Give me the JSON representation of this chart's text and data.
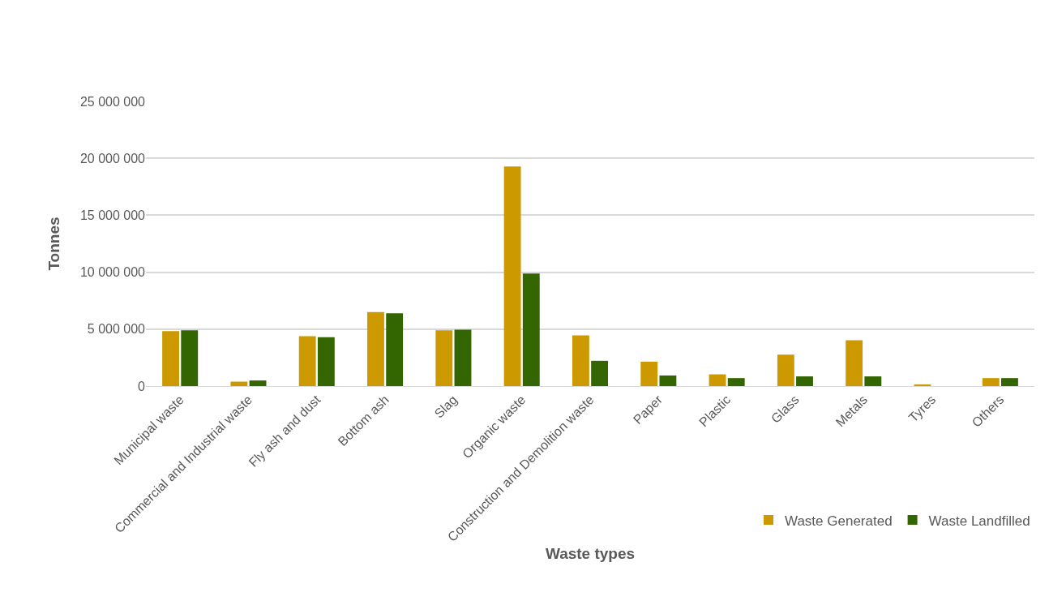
{
  "chart_data": {
    "type": "bar",
    "xlabel": "Waste types",
    "ylabel": "Tonnes",
    "categories": [
      "Municipal waste",
      "Commercial and Industrial waste",
      "Fly ash and dust",
      "Bottom ash",
      "Slag",
      "Organic waste",
      "Construction and Demolition waste",
      "Paper",
      "Plastic",
      "Glass",
      "Metals",
      "Tyres",
      "Others"
    ],
    "series": [
      {
        "name": "Waste Generated",
        "color": "#cc9900",
        "values": [
          4820000,
          390000,
          4380000,
          6500000,
          4890000,
          19280000,
          4450000,
          2140000,
          1030000,
          2760000,
          4020000,
          100000,
          700000
        ]
      },
      {
        "name": "Waste Landfilled",
        "color": "#336600",
        "values": [
          4890000,
          490000,
          4300000,
          6400000,
          4950000,
          9880000,
          2220000,
          930000,
          700000,
          850000,
          850000,
          0,
          700000
        ]
      }
    ],
    "ylim": [
      0,
      25000000
    ],
    "yticks": [
      {
        "value": 0,
        "label": "0"
      },
      {
        "value": 5000000,
        "label": "5 000 000"
      },
      {
        "value": 10000000,
        "label": "10 000 000"
      },
      {
        "value": 15000000,
        "label": "15 000 000"
      },
      {
        "value": 20000000,
        "label": "20 000 000"
      },
      {
        "value": 25000000,
        "label": "25 000 000"
      }
    ],
    "grid": "y",
    "legend": "bottom right"
  }
}
